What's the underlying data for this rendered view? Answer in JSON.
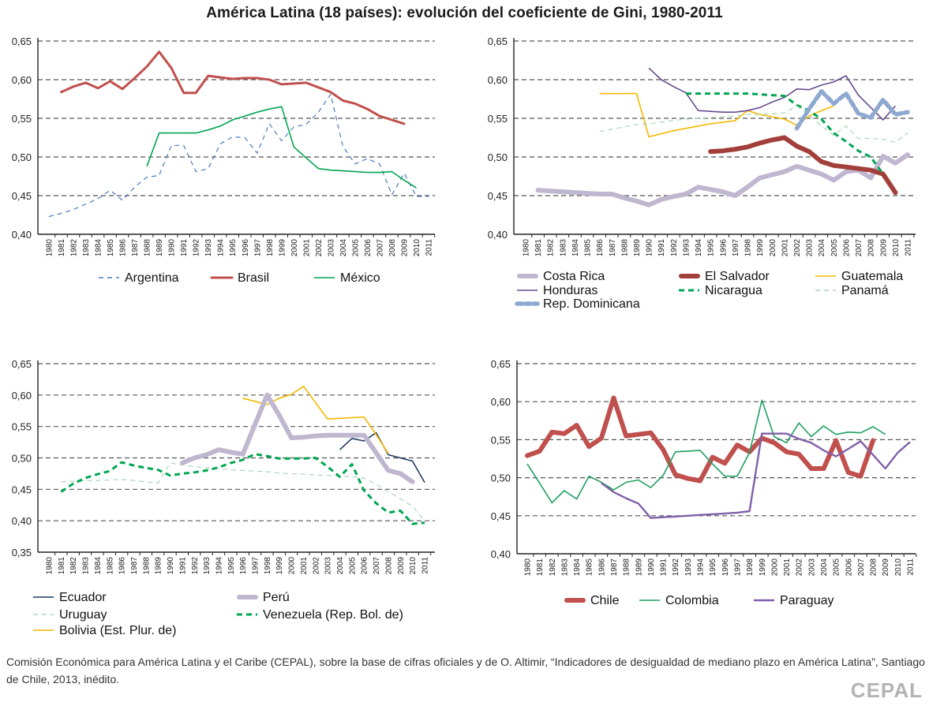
{
  "title": "América Latina (18 países): evolución del coeficiente de Gini, 1980-2011",
  "source": "Comisión Económica para América Latina y el Caribe (CEPAL), sobre la base de cifras oficiales y de O. Altimir, “Indicadores de desigualdad de mediano plazo en América Latina”, Santiago de Chile, 2013, inédito.",
  "logo": "CEPAL",
  "chart_data": [
    {
      "id": "top-left",
      "type": "line",
      "title": "",
      "xlabel": "",
      "ylabel": "",
      "x": [
        1980,
        1981,
        1982,
        1983,
        1984,
        1985,
        1986,
        1987,
        1988,
        1989,
        1990,
        1991,
        1992,
        1993,
        1994,
        1995,
        1996,
        1997,
        1998,
        1999,
        2000,
        2001,
        2002,
        2003,
        2004,
        2005,
        2006,
        2007,
        2008,
        2009,
        2010,
        2011
      ],
      "ylim": [
        0.4,
        0.65
      ],
      "yticks": [
        "0,40",
        "0,45",
        "0,50",
        "0,55",
        "0,60",
        "0,65"
      ],
      "grid": "horizontal-dashed",
      "legend_position": "bottom",
      "series": [
        {
          "name": "Argentina",
          "style": "thin-dashed",
          "color": "#4a7cc0",
          "values": [
            0.423,
            0.427,
            0.432,
            0.439,
            0.446,
            0.457,
            0.444,
            0.461,
            0.474,
            0.476,
            0.515,
            0.515,
            0.481,
            0.485,
            0.517,
            0.526,
            0.525,
            0.505,
            0.543,
            0.521,
            0.539,
            0.542,
            0.558,
            0.581,
            0.514,
            0.491,
            0.498,
            0.491,
            0.451,
            0.479,
            0.449,
            0.449
          ]
        },
        {
          "name": "Brasil",
          "style": "thick",
          "color": "#c0504d",
          "values": [
            null,
            0.584,
            0.591,
            0.596,
            0.589,
            0.598,
            0.588,
            0.602,
            0.617,
            0.636,
            0.615,
            0.583,
            0.583,
            0.605,
            0.603,
            0.601,
            0.602,
            0.602,
            0.6,
            0.594,
            0.595,
            0.596,
            0.59,
            0.584,
            0.573,
            0.569,
            0.562,
            0.553,
            0.548,
            0.543,
            null,
            null
          ]
        },
        {
          "name": "México",
          "style": "solid",
          "color": "#00a651",
          "values": [
            null,
            null,
            null,
            null,
            null,
            null,
            null,
            null,
            0.488,
            0.531,
            0.531,
            0.531,
            0.531,
            0.535,
            0.54,
            0.548,
            0.553,
            0.558,
            0.562,
            0.565,
            0.513,
            0.499,
            0.485,
            0.483,
            0.482,
            0.481,
            0.48,
            0.48,
            0.481,
            0.47,
            0.46,
            null
          ]
        }
      ]
    },
    {
      "id": "top-right",
      "type": "line",
      "title": "",
      "xlabel": "",
      "ylabel": "",
      "x": [
        1980,
        1981,
        1982,
        1983,
        1984,
        1985,
        1986,
        1987,
        1988,
        1989,
        1990,
        1991,
        1992,
        1993,
        1994,
        1995,
        1996,
        1997,
        1998,
        1999,
        2000,
        2001,
        2002,
        2003,
        2004,
        2005,
        2006,
        2007,
        2008,
        2009,
        2010,
        2011
      ],
      "ylim": [
        0.4,
        0.65
      ],
      "yticks": [
        "0,40",
        "0,45",
        "0,50",
        "0,55",
        "0,60",
        "0,65"
      ],
      "grid": "horizontal-dashed",
      "legend_position": "bottom",
      "series": [
        {
          "name": "Costa Rica",
          "style": "very-thick",
          "color": "#bfb6cf",
          "values": [
            null,
            0.457,
            0.456,
            0.455,
            0.454,
            0.453,
            0.452,
            0.452,
            0.447,
            0.443,
            0.438,
            0.445,
            0.449,
            0.452,
            0.461,
            0.458,
            0.455,
            0.45,
            0.461,
            0.473,
            0.477,
            0.481,
            0.488,
            0.483,
            0.478,
            0.47,
            0.481,
            0.483,
            0.473,
            0.501,
            0.492,
            0.503
          ]
        },
        {
          "name": "El Salvador",
          "style": "very-thick",
          "color": "#a33f3a",
          "values": [
            null,
            null,
            null,
            null,
            null,
            null,
            null,
            null,
            null,
            null,
            null,
            null,
            null,
            null,
            null,
            0.507,
            0.508,
            0.51,
            0.513,
            0.518,
            0.522,
            0.525,
            0.514,
            0.507,
            0.494,
            0.489,
            0.487,
            0.485,
            0.483,
            0.478,
            0.454,
            null
          ]
        },
        {
          "name": "Guatemala",
          "style": "solid",
          "color": "#f5b800",
          "values": [
            null,
            null,
            null,
            null,
            null,
            null,
            0.582,
            0.582,
            0.582,
            0.582,
            0.526,
            0.53,
            0.534,
            0.537,
            0.54,
            0.543,
            0.545,
            0.547,
            0.56,
            0.555,
            0.552,
            0.549,
            0.541,
            0.553,
            0.56,
            0.566,
            null,
            null,
            null,
            null,
            null,
            null
          ]
        },
        {
          "name": "Honduras",
          "style": "solid",
          "color": "#654b8f",
          "values": [
            null,
            null,
            null,
            null,
            null,
            null,
            null,
            null,
            null,
            null,
            0.615,
            0.6,
            0.591,
            0.583,
            0.56,
            0.559,
            0.558,
            0.558,
            0.56,
            0.564,
            0.571,
            0.577,
            0.588,
            0.587,
            0.593,
            0.597,
            0.605,
            0.58,
            0.564,
            0.548,
            0.566,
            null
          ]
        },
        {
          "name": "Nicaragua",
          "style": "thick-dashed",
          "color": "#00a651",
          "values": [
            null,
            null,
            null,
            null,
            null,
            null,
            null,
            null,
            null,
            null,
            null,
            null,
            null,
            0.582,
            0.582,
            0.582,
            0.582,
            0.582,
            0.582,
            0.581,
            0.58,
            0.579,
            0.567,
            0.56,
            0.549,
            0.531,
            0.52,
            0.508,
            0.5,
            0.478,
            null,
            null
          ]
        },
        {
          "name": "Panamá",
          "style": "thin-dashed",
          "color": "#a8d5b5",
          "values": [
            null,
            null,
            null,
            null,
            null,
            null,
            0.533,
            0.536,
            0.539,
            0.542,
            0.543,
            0.545,
            0.547,
            0.549,
            0.55,
            0.551,
            0.552,
            0.553,
            0.555,
            0.555,
            0.556,
            0.557,
            0.566,
            0.554,
            0.54,
            0.528,
            0.54,
            0.524,
            0.524,
            0.523,
            0.519,
            0.531
          ]
        },
        {
          "name": "Rep. Dominicana",
          "style": "dotted-thick",
          "color": "#8ea9d0",
          "values": [
            null,
            null,
            null,
            null,
            null,
            null,
            null,
            null,
            null,
            null,
            null,
            null,
            null,
            null,
            null,
            null,
            null,
            null,
            null,
            null,
            null,
            null,
            0.537,
            0.562,
            0.585,
            0.569,
            0.582,
            0.556,
            0.551,
            0.574,
            0.555,
            0.558
          ]
        }
      ]
    },
    {
      "id": "bottom-left",
      "type": "line",
      "title": "",
      "xlabel": "",
      "ylabel": "",
      "x": [
        1980,
        1981,
        1982,
        1983,
        1984,
        1985,
        1986,
        1987,
        1988,
        1989,
        1990,
        1991,
        1992,
        1993,
        1994,
        1995,
        1996,
        1997,
        1998,
        1999,
        2000,
        2001,
        2002,
        2003,
        2004,
        2005,
        2006,
        2007,
        2008,
        2009,
        2010,
        2011
      ],
      "ylim": [
        0.35,
        0.65
      ],
      "yticks": [
        "0,35",
        "0,40",
        "0,45",
        "0,50",
        "0,55",
        "0,60",
        "0,65"
      ],
      "grid": "horizontal-dashed",
      "legend_position": "bottom",
      "series": [
        {
          "name": "Ecuador",
          "style": "solid",
          "color": "#1f3a5f",
          "values": [
            null,
            null,
            null,
            null,
            null,
            null,
            null,
            null,
            null,
            null,
            null,
            null,
            null,
            null,
            null,
            null,
            null,
            null,
            null,
            null,
            null,
            null,
            null,
            null,
            0.513,
            0.531,
            0.527,
            0.54,
            0.505,
            0.5,
            0.495,
            0.461
          ]
        },
        {
          "name": "Uruguay",
          "style": "thin-dashed",
          "color": "#a8d5b5",
          "values": [
            null,
            0.462,
            0.463,
            0.464,
            0.464,
            0.465,
            0.466,
            0.464,
            0.462,
            0.46,
            0.492,
            0.489,
            0.486,
            0.484,
            0.483,
            0.481,
            0.48,
            0.479,
            0.478,
            0.476,
            0.475,
            0.474,
            0.473,
            0.472,
            0.471,
            0.47,
            0.468,
            0.458,
            0.446,
            0.435,
            0.423,
            0.4
          ]
        },
        {
          "name": "Bolivia (Est. Plur. de)",
          "style": "solid",
          "color": "#f5b800",
          "values": [
            null,
            null,
            null,
            null,
            null,
            null,
            null,
            null,
            null,
            null,
            null,
            null,
            null,
            null,
            null,
            null,
            0.595,
            0.59,
            0.585,
            0.595,
            0.601,
            0.614,
            0.588,
            0.562,
            0.563,
            0.564,
            0.565,
            0.537,
            0.507,
            null,
            null,
            null
          ]
        },
        {
          "name": "Perú",
          "style": "very-thick",
          "color": "#bfb6cf",
          "values": [
            null,
            null,
            null,
            null,
            null,
            null,
            null,
            null,
            null,
            null,
            null,
            0.492,
            0.5,
            0.505,
            0.513,
            0.509,
            0.506,
            0.553,
            0.6,
            0.568,
            0.532,
            0.533,
            0.535,
            0.536,
            0.536,
            0.536,
            0.536,
            0.508,
            0.48,
            0.475,
            0.462,
            null
          ]
        },
        {
          "name": "Venezuela (Rep. Bol. de)",
          "style": "thick-dashed",
          "color": "#00a651",
          "values": [
            null,
            0.446,
            0.459,
            0.468,
            0.474,
            0.479,
            0.493,
            0.488,
            0.484,
            0.481,
            0.472,
            0.475,
            0.477,
            0.48,
            0.485,
            0.492,
            0.497,
            0.506,
            0.503,
            0.499,
            0.499,
            0.499,
            0.5,
            0.486,
            0.47,
            0.49,
            0.448,
            0.428,
            0.413,
            0.416,
            0.395,
            0.397
          ]
        }
      ]
    },
    {
      "id": "bottom-right",
      "type": "line",
      "title": "",
      "xlabel": "",
      "ylabel": "",
      "x": [
        1980,
        1981,
        1982,
        1983,
        1984,
        1985,
        1986,
        1987,
        1988,
        1989,
        1990,
        1991,
        1992,
        1993,
        1994,
        1995,
        1996,
        1997,
        1998,
        1999,
        2000,
        2001,
        2002,
        2003,
        2004,
        2005,
        2006,
        2007,
        2008,
        2009,
        2010,
        2011
      ],
      "ylim": [
        0.4,
        0.65
      ],
      "yticks": [
        "0,40",
        "0,45",
        "0,50",
        "0,55",
        "0,60",
        "0,65"
      ],
      "grid": "horizontal-dashed",
      "legend_position": "bottom",
      "series": [
        {
          "name": "Chile",
          "style": "very-thick",
          "color": "#c0504d",
          "values": [
            0.529,
            0.535,
            0.56,
            0.558,
            0.569,
            0.541,
            0.552,
            0.605,
            0.555,
            0.557,
            0.559,
            0.537,
            0.504,
            0.499,
            0.496,
            0.527,
            0.519,
            0.543,
            0.534,
            0.552,
            0.546,
            0.534,
            0.531,
            0.512,
            0.512,
            0.549,
            0.507,
            0.502,
            0.549,
            null,
            null,
            null
          ]
        },
        {
          "name": "Colombia",
          "style": "solid",
          "color": "#1fa060",
          "values": [
            0.518,
            0.493,
            0.467,
            0.483,
            0.472,
            0.502,
            0.494,
            0.484,
            0.494,
            0.497,
            0.487,
            0.503,
            0.534,
            0.535,
            0.536,
            0.518,
            0.502,
            0.502,
            0.533,
            0.602,
            0.554,
            0.546,
            0.572,
            0.554,
            0.568,
            0.557,
            0.56,
            0.559,
            0.567,
            0.557,
            null,
            null
          ]
        },
        {
          "name": "Paraguay",
          "style": "solid-medium",
          "color": "#8060a8",
          "values": [
            null,
            null,
            null,
            null,
            null,
            null,
            0.493,
            0.481,
            0.473,
            0.466,
            0.447,
            0.448,
            0.449,
            0.45,
            0.451,
            0.452,
            0.453,
            0.454,
            0.456,
            0.558,
            0.558,
            0.558,
            0.551,
            0.546,
            0.536,
            0.528,
            0.538,
            0.548,
            0.53,
            0.512,
            0.533,
            0.547
          ]
        }
      ]
    }
  ]
}
